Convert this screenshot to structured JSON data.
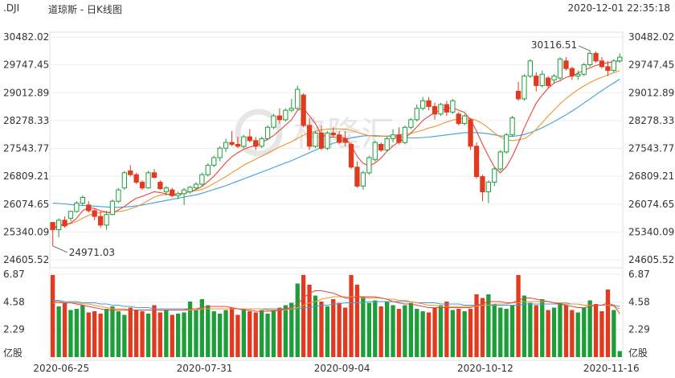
{
  "header": {
    "symbol": ".DJI",
    "title": "道琼斯 - 日K线图",
    "timestamp": "2020-12-01 22:35:18"
  },
  "watermark": {
    "text": "格隆汇"
  },
  "chart_data": {
    "type": "candlestick",
    "price_axis": {
      "ticks": [
        "30482.02",
        "29747.45",
        "29012.89",
        "28278.33",
        "27543.77",
        "26809.21",
        "26074.65",
        "25340.09",
        "24605.52"
      ],
      "range": [
        24605.52,
        30482.02
      ]
    },
    "volume_axis": {
      "ticks": [
        "6.87",
        "4.58",
        "2.29"
      ],
      "unit": "亿股",
      "range": [
        0,
        6.87
      ]
    },
    "x_labels": [
      "2020-06-25",
      "2020-07-31",
      "2020-09-04",
      "2020-10-12",
      "2020-11-16"
    ],
    "annotations": {
      "high": "30116.51",
      "low": "24971.03"
    },
    "colors": {
      "up": "#1e9e3a",
      "down": "#e23a1e",
      "ma5": "#e8433e",
      "ma10": "#f0952e",
      "ma20": "#3da0dc"
    },
    "ohlc": [
      [
        25590,
        25600,
        24970,
        25400
      ],
      [
        25400,
        25700,
        25200,
        25650
      ],
      [
        25650,
        25750,
        25450,
        25500
      ],
      [
        25700,
        25900,
        25620,
        25880
      ],
      [
        25880,
        26150,
        25850,
        26100
      ],
      [
        26100,
        26300,
        26050,
        26250
      ],
      [
        26050,
        26150,
        25850,
        25900
      ],
      [
        25900,
        25950,
        25650,
        25750
      ],
      [
        25750,
        25880,
        25450,
        25520
      ],
      [
        25520,
        25900,
        25400,
        25800
      ],
      [
        25800,
        26200,
        25780,
        26150
      ],
      [
        26150,
        26500,
        26100,
        26450
      ],
      [
        26500,
        26950,
        26450,
        26900
      ],
      [
        26950,
        27100,
        26800,
        26850
      ],
      [
        26850,
        26900,
        26600,
        26650
      ],
      [
        26650,
        26700,
        26450,
        26500
      ],
      [
        26500,
        26950,
        26480,
        26900
      ],
      [
        26900,
        27000,
        26750,
        26780
      ],
      [
        26650,
        26700,
        26450,
        26480
      ],
      [
        26400,
        26550,
        26300,
        26500
      ],
      [
        26450,
        26500,
        26250,
        26300
      ],
      [
        26300,
        26400,
        26200,
        26350
      ],
      [
        26350,
        26500,
        26050,
        26450
      ],
      [
        26400,
        26550,
        26350,
        26520
      ],
      [
        26500,
        26650,
        26450,
        26600
      ],
      [
        26600,
        26900,
        26550,
        26850
      ],
      [
        26850,
        27150,
        26800,
        27100
      ],
      [
        27100,
        27350,
        27050,
        27300
      ],
      [
        27300,
        27600,
        27200,
        27550
      ],
      [
        27550,
        27800,
        27450,
        27700
      ],
      [
        27700,
        28000,
        27600,
        27650
      ],
      [
        27650,
        27850,
        27550,
        27600
      ],
      [
        27600,
        27900,
        27550,
        27850
      ],
      [
        27850,
        28050,
        27700,
        27750
      ],
      [
        27750,
        27850,
        27500,
        27600
      ],
      [
        27600,
        27850,
        27550,
        27800
      ],
      [
        27800,
        28150,
        27750,
        28100
      ],
      [
        28100,
        28450,
        28050,
        28400
      ],
      [
        28400,
        28600,
        28200,
        28300
      ],
      [
        28300,
        28600,
        28250,
        28550
      ],
      [
        28550,
        28850,
        28500,
        28600
      ],
      [
        28600,
        29200,
        28550,
        29100
      ],
      [
        28950,
        29000,
        28100,
        28150
      ],
      [
        28150,
        28350,
        27500,
        27600
      ],
      [
        27600,
        28000,
        27550,
        27950
      ],
      [
        27950,
        28150,
        27500,
        27550
      ],
      [
        27550,
        28000,
        27500,
        27950
      ],
      [
        27950,
        28100,
        27850,
        27900
      ],
      [
        27900,
        28000,
        27650,
        27700
      ],
      [
        27800,
        28000,
        27600,
        27700
      ],
      [
        27650,
        27700,
        27000,
        27050
      ],
      [
        27050,
        27200,
        26500,
        26550
      ],
      [
        26550,
        26950,
        26450,
        26900
      ],
      [
        26900,
        27350,
        26850,
        27300
      ],
      [
        27250,
        27750,
        27200,
        27700
      ],
      [
        27650,
        27700,
        27450,
        27500
      ],
      [
        27500,
        27850,
        27450,
        27800
      ],
      [
        27800,
        28050,
        27700,
        27900
      ],
      [
        27900,
        28100,
        27650,
        27700
      ],
      [
        27700,
        28150,
        27650,
        28100
      ],
      [
        28100,
        28350,
        28050,
        28300
      ],
      [
        28300,
        28700,
        28250,
        28600
      ],
      [
        28600,
        28900,
        28550,
        28800
      ],
      [
        28800,
        28900,
        28550,
        28650
      ],
      [
        28650,
        28750,
        28300,
        28450
      ],
      [
        28450,
        28750,
        28400,
        28700
      ],
      [
        28700,
        28800,
        28400,
        28500
      ],
      [
        28500,
        28850,
        28450,
        28800
      ],
      [
        28450,
        28500,
        28150,
        28200
      ],
      [
        28200,
        28450,
        28150,
        28400
      ],
      [
        28300,
        28350,
        27500,
        27600
      ],
      [
        27600,
        27700,
        26750,
        26800
      ],
      [
        26800,
        26850,
        26150,
        26400
      ],
      [
        26400,
        26700,
        26100,
        26650
      ],
      [
        26650,
        27050,
        26550,
        27000
      ],
      [
        27000,
        27500,
        26950,
        27450
      ],
      [
        27450,
        27950,
        27400,
        27900
      ],
      [
        27900,
        28400,
        27850,
        28350
      ],
      [
        29050,
        29300,
        28800,
        28850
      ],
      [
        28850,
        29500,
        28800,
        29450
      ],
      [
        29450,
        29900,
        29400,
        29850
      ],
      [
        29450,
        29550,
        29050,
        29200
      ],
      [
        29200,
        29600,
        29150,
        29500
      ],
      [
        29400,
        29450,
        29150,
        29200
      ],
      [
        29350,
        29500,
        29250,
        29450
      ],
      [
        29400,
        29950,
        29350,
        29900
      ],
      [
        29850,
        29950,
        29600,
        29650
      ],
      [
        29650,
        29700,
        29350,
        29450
      ],
      [
        29450,
        29600,
        29350,
        29500
      ],
      [
        29500,
        29800,
        29450,
        29750
      ],
      [
        29750,
        30120,
        29700,
        30050
      ],
      [
        30050,
        30100,
        29800,
        29850
      ],
      [
        29850,
        29950,
        29650,
        29700
      ],
      [
        29700,
        29850,
        29450,
        29600
      ],
      [
        29600,
        29900,
        29550,
        29850
      ],
      [
        29850,
        30050,
        29800,
        29950
      ]
    ],
    "volume": [
      6.8,
      4.2,
      4.5,
      3.9,
      4.0,
      4.3,
      3.7,
      3.8,
      3.6,
      4.0,
      4.2,
      3.8,
      3.5,
      4.1,
      3.9,
      3.8,
      3.6,
      4.3,
      3.7,
      3.9,
      3.5,
      3.6,
      3.7,
      4.6,
      3.9,
      4.8,
      4.3,
      3.8,
      3.6,
      3.9,
      4.1,
      3.5,
      4.0,
      3.8,
      3.7,
      3.9,
      3.6,
      3.9,
      4.1,
      4.3,
      4.5,
      6.1,
      6.8,
      6.0,
      5.1,
      4.6,
      4.2,
      4.8,
      4.5,
      4.1,
      6.8,
      6.0,
      5.0,
      4.5,
      4.7,
      4.2,
      4.6,
      4.3,
      4.0,
      4.3,
      4.5,
      4.0,
      3.8,
      3.7,
      4.1,
      4.3,
      4.6,
      3.9,
      4.0,
      3.8,
      4.0,
      5.2,
      4.9,
      5.2,
      4.4,
      4.1,
      4.0,
      4.3,
      6.8,
      5.1,
      4.5,
      4.3,
      4.8,
      3.9,
      4.1,
      4.5,
      4.3,
      3.9,
      3.7,
      4.1,
      4.7,
      4.4,
      3.8,
      5.6,
      3.9,
      0.5
    ],
    "ma5": [
      25400,
      25550,
      25520,
      25580,
      25700,
      25900,
      25980,
      25960,
      25900,
      25860,
      25830,
      25920,
      26010,
      26130,
      26230,
      26280,
      26340,
      26400,
      26380,
      26340,
      26300,
      26320,
      26360,
      26410,
      26460,
      26540,
      26670,
      26810,
      26990,
      27170,
      27320,
      27430,
      27520,
      27580,
      27620,
      27690,
      27790,
      27880,
      28020,
      28160,
      28300,
      28550,
      28600,
      28400,
      28200,
      27900,
      27840,
      27840,
      27830,
      27820,
      27620,
      27330,
      27150,
      27080,
      27160,
      27290,
      27470,
      27610,
      27720,
      27810,
      27950,
      28110,
      28280,
      28390,
      28490,
      28540,
      28590,
      28620,
      28550,
      28490,
      28300,
      28000,
      27650,
      27340,
      27050,
      26900,
      27060,
      27340,
      27680,
      28090,
      28420,
      28740,
      28950,
      29130,
      29270,
      29330,
      29420,
      29460,
      29530,
      29600,
      29670,
      29730,
      29780,
      29800,
      29830,
      29850
    ],
    "ma10": [
      25400,
      25500,
      25520,
      25560,
      25620,
      25700,
      25780,
      25820,
      25860,
      25860,
      25870,
      25880,
      25900,
      25950,
      26000,
      26080,
      26170,
      26260,
      26310,
      26330,
      26340,
      26350,
      26370,
      26400,
      26430,
      26460,
      26530,
      26620,
      26710,
      26800,
      26900,
      27000,
      27100,
      27180,
      27260,
      27340,
      27420,
      27500,
      27580,
      27650,
      27720,
      27810,
      27890,
      27960,
      28000,
      28030,
      28050,
      28060,
      28060,
      28050,
      28020,
      27970,
      27920,
      27880,
      27860,
      27860,
      27870,
      27880,
      27900,
      27920,
      27940,
      27980,
      28030,
      28080,
      28120,
      28180,
      28240,
      28290,
      28320,
      28340,
      28330,
      28280,
      28200,
      28080,
      27950,
      27840,
      27770,
      27750,
      27770,
      27800,
      27900,
      28050,
      28220,
      28400,
      28560,
      28720,
      28860,
      28980,
      29090,
      29190,
      29280,
      29360,
      29420,
      29480,
      29540,
      29600
    ],
    "ma20": [
      26100,
      26090,
      26080,
      26060,
      26050,
      26040,
      26030,
      26020,
      26010,
      26000,
      25990,
      25990,
      26000,
      26010,
      26030,
      26050,
      26080,
      26110,
      26140,
      26170,
      26200,
      26230,
      26260,
      26290,
      26320,
      26360,
      26410,
      26460,
      26510,
      26560,
      26620,
      26680,
      26740,
      26800,
      26860,
      26920,
      26980,
      27040,
      27100,
      27160,
      27220,
      27290,
      27360,
      27430,
      27500,
      27560,
      27620,
      27680,
      27730,
      27780,
      27820,
      27850,
      27870,
      27880,
      27880,
      27870,
      27860,
      27850,
      27840,
      27830,
      27820,
      27820,
      27830,
      27840,
      27860,
      27880,
      27900,
      27920,
      27940,
      27960,
      27960,
      27960,
      27950,
      27930,
      27900,
      27870,
      27860,
      27860,
      27880,
      27910,
      27960,
      28020,
      28090,
      28170,
      28250,
      28340,
      28430,
      28530,
      28630,
      28740,
      28850,
      28960,
      29070,
      29170,
      29270,
      29370
    ],
    "vol_ma5": [
      4.6,
      4.6,
      4.5,
      4.5,
      4.4,
      4.3,
      4.2,
      4.1,
      4.0,
      3.9,
      3.9,
      3.9,
      3.9,
      3.9,
      3.9,
      3.9,
      3.9,
      3.9,
      3.9,
      3.9,
      3.9,
      3.9,
      3.9,
      4.0,
      4.0,
      4.1,
      4.2,
      4.2,
      4.2,
      4.2,
      4.1,
      4.0,
      3.9,
      3.9,
      3.8,
      3.8,
      3.8,
      3.8,
      3.9,
      4.0,
      4.1,
      4.4,
      4.9,
      5.3,
      5.5,
      5.5,
      5.4,
      5.3,
      5.1,
      4.9,
      4.9,
      5.0,
      5.0,
      5.0,
      5.0,
      4.9,
      4.8,
      4.6,
      4.5,
      4.4,
      4.4,
      4.3,
      4.2,
      4.1,
      4.1,
      4.1,
      4.1,
      4.1,
      4.1,
      4.1,
      4.1,
      4.3,
      4.4,
      4.6,
      4.6,
      4.6,
      4.5,
      4.5,
      4.7,
      4.9,
      4.9,
      4.8,
      4.7,
      4.6,
      4.5,
      4.4,
      4.3,
      4.2,
      4.1,
      4.1,
      4.2,
      4.3,
      4.3,
      4.5,
      4.3,
      3.6
    ],
    "vol_ma10": [
      4.5,
      4.5,
      4.5,
      4.5,
      4.5,
      4.4,
      4.4,
      4.3,
      4.2,
      4.1,
      4.0,
      4.0,
      4.0,
      3.9,
      3.9,
      3.9,
      3.9,
      3.9,
      3.9,
      3.9,
      3.9,
      3.9,
      3.9,
      3.9,
      3.9,
      4.0,
      4.0,
      4.0,
      4.0,
      4.0,
      4.0,
      4.0,
      4.0,
      4.0,
      4.0,
      4.0,
      3.9,
      3.9,
      3.9,
      3.9,
      4.0,
      4.1,
      4.3,
      4.5,
      4.6,
      4.8,
      4.9,
      5.0,
      5.0,
      5.0,
      5.0,
      5.0,
      4.9,
      4.9,
      4.9,
      4.9,
      4.8,
      4.8,
      4.7,
      4.7,
      4.6,
      4.5,
      4.4,
      4.3,
      4.3,
      4.2,
      4.2,
      4.2,
      4.2,
      4.2,
      4.2,
      4.2,
      4.3,
      4.3,
      4.4,
      4.4,
      4.4,
      4.5,
      4.5,
      4.6,
      4.6,
      4.6,
      4.6,
      4.6,
      4.5,
      4.5,
      4.5,
      4.4,
      4.4,
      4.3,
      4.3,
      4.3,
      4.3,
      4.3,
      4.2,
      4.0
    ],
    "vol_ma20": [
      4.7,
      4.7,
      4.6,
      4.6,
      4.6,
      4.5,
      4.5,
      4.5,
      4.4,
      4.4,
      4.3,
      4.3,
      4.2,
      4.2,
      4.1,
      4.1,
      4.1,
      4.0,
      4.0,
      4.0,
      4.0,
      4.0,
      4.0,
      4.0,
      4.0,
      4.0,
      4.0,
      4.0,
      4.0,
      4.0,
      4.0,
      4.0,
      4.0,
      4.0,
      4.0,
      4.0,
      4.0,
      4.0,
      4.0,
      4.0,
      4.0,
      4.0,
      4.1,
      4.1,
      4.2,
      4.3,
      4.3,
      4.4,
      4.4,
      4.5,
      4.5,
      4.5,
      4.5,
      4.6,
      4.6,
      4.6,
      4.6,
      4.6,
      4.6,
      4.6,
      4.6,
      4.5,
      4.5,
      4.5,
      4.5,
      4.4,
      4.4,
      4.4,
      4.4,
      4.3,
      4.3,
      4.3,
      4.3,
      4.3,
      4.3,
      4.3,
      4.3,
      4.3,
      4.3,
      4.4,
      4.4,
      4.4,
      4.4,
      4.4,
      4.4,
      4.4,
      4.4,
      4.4,
      4.4,
      4.3,
      4.3,
      4.3,
      4.3,
      4.3,
      4.3,
      4.2
    ]
  }
}
